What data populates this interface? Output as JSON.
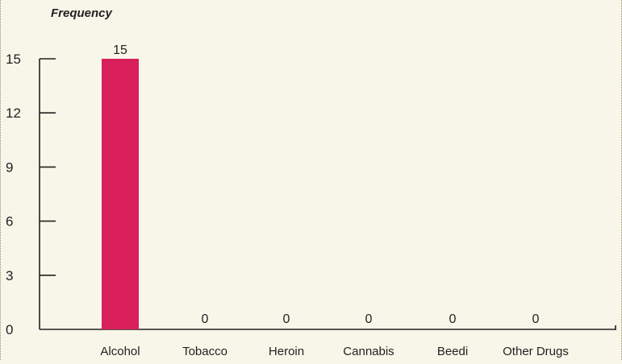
{
  "chart_data": {
    "type": "bar",
    "title": "",
    "xlabel": "",
    "ylabel": "Frequency",
    "categories": [
      "Alcohol",
      "Tobacco",
      "Heroin",
      "Cannabis",
      "Beedi",
      "Other Drugs"
    ],
    "values": [
      15,
      0,
      0,
      0,
      0,
      0
    ],
    "data_labels": [
      "15",
      "0",
      "0",
      "0",
      "0",
      "0"
    ],
    "ylim": [
      0,
      15
    ],
    "yticks": [
      0,
      3,
      6,
      9,
      12,
      15
    ],
    "ytick_labels": [
      "0",
      "3",
      "6",
      "9",
      "12",
      "15"
    ],
    "grid": false,
    "legend": "none",
    "colors": {
      "bar": "#d81e5b",
      "axis": "#222222",
      "background": "#f8f5e9",
      "frame": "#9a8f6c"
    }
  }
}
